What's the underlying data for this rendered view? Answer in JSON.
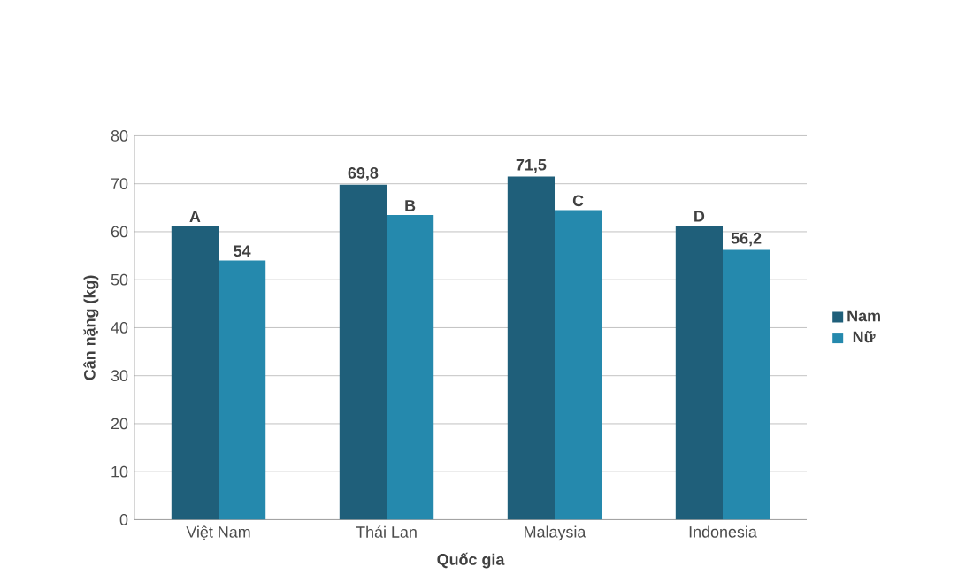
{
  "chart_data": {
    "type": "bar",
    "xlabel": "Quốc gia",
    "ylabel": "Cân nặng (kg)",
    "categories": [
      "Việt Nam",
      "Thái Lan",
      "Malaysia",
      "Indonesia"
    ],
    "series": [
      {
        "name": "Nam",
        "color": "#1f5f7a",
        "values": [
          61.2,
          69.8,
          71.5,
          61.3
        ],
        "value_labels": [
          "A",
          "69,8",
          "71,5",
          "D"
        ]
      },
      {
        "name": "Nữ",
        "color": "#2589ad",
        "values": [
          54,
          63.5,
          64.5,
          56.2
        ],
        "value_labels": [
          "54",
          "B",
          "C",
          "56,2"
        ]
      }
    ],
    "ylim": [
      0,
      80
    ],
    "yticks": [
      0,
      10,
      20,
      30,
      40,
      50,
      60,
      70,
      80
    ],
    "grid": "y",
    "legend": "right"
  }
}
